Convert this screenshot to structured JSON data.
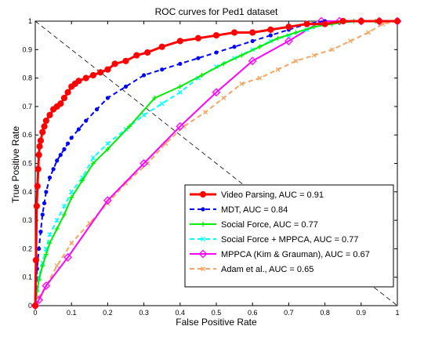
{
  "chart_data": {
    "type": "line",
    "title": "ROC curves for Ped1 dataset",
    "xlabel": "False Positive Rate",
    "ylabel": "True Positive Rate",
    "xlim": [
      0,
      1
    ],
    "ylim": [
      0,
      1
    ],
    "x_ticks": [
      "0",
      "0.1",
      "0.2",
      "0.3",
      "0.4",
      "0.5",
      "0.6",
      "0.7",
      "0.8",
      "0.9",
      "1"
    ],
    "y_ticks": [
      "0",
      "0.1",
      "0.2",
      "0.3",
      "0.4",
      "0.5",
      "0.6",
      "0.7",
      "0.8",
      "0.9",
      "1"
    ],
    "grid": false,
    "legend_position": "bottom-right",
    "reference_line": {
      "x": [
        0,
        1
      ],
      "y": [
        1,
        0
      ],
      "style": "dashed",
      "color": "#000000"
    },
    "series": [
      {
        "name": "Video Parsing, AUC = 0.91",
        "color": "#ff0000",
        "dash": "solid",
        "marker": "circle",
        "width": 3,
        "x": [
          0,
          0.002,
          0.004,
          0.006,
          0.008,
          0.01,
          0.012,
          0.015,
          0.02,
          0.025,
          0.03,
          0.04,
          0.05,
          0.06,
          0.07,
          0.08,
          0.09,
          0.1,
          0.11,
          0.12,
          0.14,
          0.16,
          0.18,
          0.2,
          0.22,
          0.25,
          0.28,
          0.31,
          0.35,
          0.4,
          0.45,
          0.5,
          0.55,
          0.6,
          0.65,
          0.7,
          0.75,
          0.8,
          0.85,
          0.9,
          0.95,
          1.0
        ],
        "y": [
          0,
          0.16,
          0.35,
          0.42,
          0.48,
          0.53,
          0.56,
          0.58,
          0.61,
          0.63,
          0.65,
          0.67,
          0.69,
          0.7,
          0.71,
          0.73,
          0.75,
          0.77,
          0.78,
          0.79,
          0.8,
          0.81,
          0.82,
          0.83,
          0.85,
          0.86,
          0.88,
          0.89,
          0.91,
          0.93,
          0.94,
          0.95,
          0.96,
          0.96,
          0.97,
          0.98,
          0.99,
          0.99,
          1.0,
          1.0,
          1.0,
          1.0
        ]
      },
      {
        "name": "MDT, AUC = 0.84",
        "color": "#0000ff",
        "dash": "dashed",
        "marker": "dot",
        "width": 2,
        "x": [
          0,
          0.005,
          0.01,
          0.015,
          0.02,
          0.025,
          0.03,
          0.04,
          0.05,
          0.06,
          0.07,
          0.08,
          0.09,
          0.1,
          0.12,
          0.14,
          0.17,
          0.2,
          0.25,
          0.3,
          0.35,
          0.4,
          0.45,
          0.5,
          0.55,
          0.6,
          0.65,
          0.7,
          0.75,
          0.8
        ],
        "y": [
          0,
          0.13,
          0.2,
          0.26,
          0.32,
          0.36,
          0.4,
          0.45,
          0.48,
          0.51,
          0.53,
          0.55,
          0.57,
          0.59,
          0.62,
          0.65,
          0.69,
          0.73,
          0.77,
          0.81,
          0.83,
          0.85,
          0.87,
          0.89,
          0.91,
          0.93,
          0.95,
          0.97,
          0.99,
          1.0
        ]
      },
      {
        "name": "Social Force, AUC = 0.77",
        "color": "#00ee00",
        "dash": "solid",
        "marker": "plus",
        "width": 2,
        "x": [
          0,
          0.005,
          0.01,
          0.02,
          0.03,
          0.04,
          0.06,
          0.08,
          0.1,
          0.13,
          0.16,
          0.2,
          0.26,
          0.33,
          0.4,
          0.46,
          0.52,
          0.57,
          0.62,
          0.67,
          0.72,
          0.77,
          0.82,
          0.88,
          0.94,
          1.0
        ],
        "y": [
          0,
          0.05,
          0.09,
          0.14,
          0.18,
          0.22,
          0.27,
          0.32,
          0.38,
          0.44,
          0.5,
          0.55,
          0.63,
          0.73,
          0.77,
          0.81,
          0.85,
          0.88,
          0.91,
          0.94,
          0.96,
          0.98,
          0.99,
          1.0,
          1.0,
          1.0
        ]
      },
      {
        "name": "Social Force + MPPCA, AUC = 0.77",
        "color": "#00ffff",
        "dash": "dashed",
        "marker": "x",
        "width": 2,
        "x": [
          0,
          0.005,
          0.01,
          0.02,
          0.03,
          0.04,
          0.06,
          0.08,
          0.1,
          0.13,
          0.16,
          0.2,
          0.25,
          0.3,
          0.35,
          0.4,
          0.45,
          0.5,
          0.55,
          0.6,
          0.65,
          0.7,
          0.75,
          0.8,
          0.9,
          1.0
        ],
        "y": [
          0,
          0.06,
          0.1,
          0.15,
          0.2,
          0.25,
          0.3,
          0.35,
          0.4,
          0.45,
          0.52,
          0.57,
          0.62,
          0.67,
          0.71,
          0.75,
          0.8,
          0.84,
          0.87,
          0.9,
          0.93,
          0.95,
          0.97,
          0.99,
          1.0,
          1.0
        ]
      },
      {
        "name": "MPPCA (Kim & Grauman), AUC = 0.67",
        "color": "#ff00ff",
        "dash": "solid",
        "marker": "diamond",
        "width": 2,
        "x": [
          0,
          0.01,
          0.03,
          0.09,
          0.2,
          0.3,
          0.4,
          0.5,
          0.6,
          0.7,
          0.79,
          0.84,
          0.9,
          0.95,
          1.0
        ],
        "y": [
          0,
          0.02,
          0.07,
          0.17,
          0.37,
          0.5,
          0.63,
          0.75,
          0.86,
          0.93,
          1.0,
          1.0,
          1.0,
          1.0,
          1.0
        ]
      },
      {
        "name": "Adam et al., AUC = 0.65",
        "color": "#f4a460",
        "dash": "dashed",
        "marker": "x",
        "width": 2,
        "x": [
          0,
          0.01,
          0.03,
          0.06,
          0.1,
          0.15,
          0.2,
          0.25,
          0.31,
          0.36,
          0.41,
          0.47,
          0.52,
          0.57,
          0.62,
          0.67,
          0.72,
          0.77,
          0.82,
          0.87,
          0.92,
          0.96,
          1.0
        ],
        "y": [
          0,
          0.03,
          0.07,
          0.14,
          0.22,
          0.29,
          0.36,
          0.43,
          0.5,
          0.57,
          0.63,
          0.68,
          0.73,
          0.78,
          0.8,
          0.83,
          0.86,
          0.88,
          0.9,
          0.93,
          0.96,
          0.99,
          1.0
        ]
      }
    ]
  }
}
